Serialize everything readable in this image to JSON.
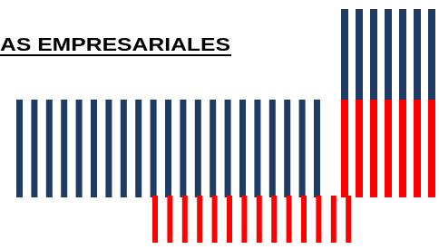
{
  "header": {
    "title": "AS EMPRESARIALES"
  }
}
